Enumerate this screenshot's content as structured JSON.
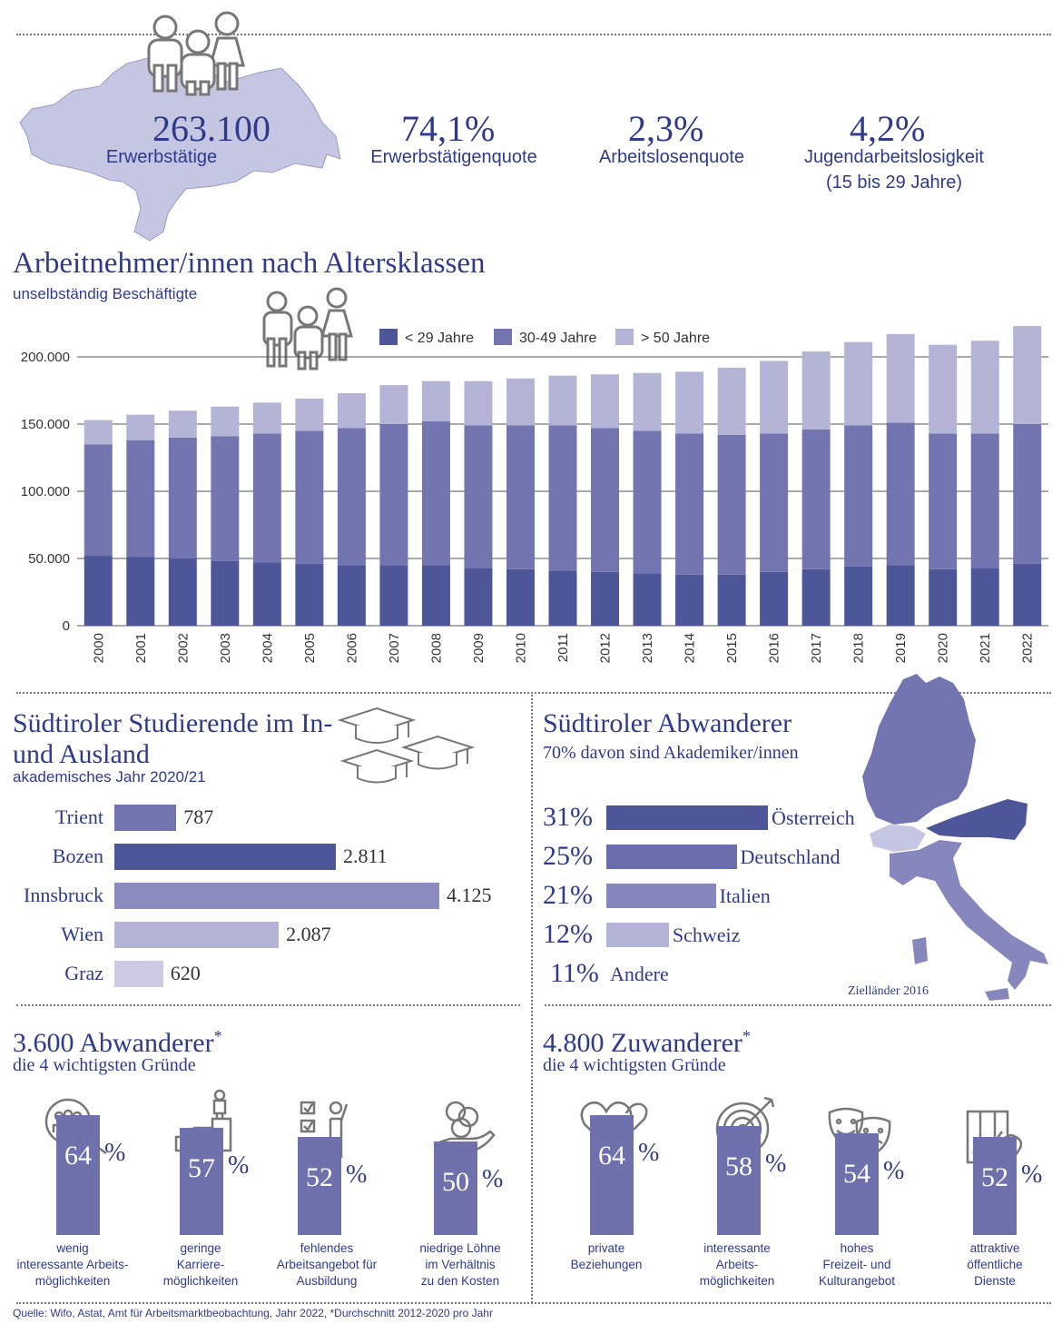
{
  "kpis": [
    {
      "value": "263.100",
      "label": "Erwerbstätige"
    },
    {
      "value": "74,1%",
      "label": "Erwerbstätigenquote"
    },
    {
      "value": "2,3%",
      "label": "Arbeitslosenquote"
    },
    {
      "value": "4,2%",
      "label": "Jugendarbeitslosigkeit",
      "label2": "(15 bis 29 Jahre)"
    }
  ],
  "colors": {
    "dark": "#4d5699",
    "mid": "#7275b0",
    "light": "#b3b4d6",
    "map_fill": "#c5c6e2"
  },
  "chart_data": [
    {
      "type": "bar",
      "stacked": true,
      "title": "Arbeitnehmer/innen nach Altersklassen",
      "subtitle": "unselbständig Beschäftigte",
      "categories": [
        "2000",
        "2001",
        "2002",
        "2003",
        "2004",
        "2005",
        "2006",
        "2007",
        "2008",
        "2009",
        "2010",
        "2011",
        "2012",
        "2013",
        "2014",
        "2015",
        "2016",
        "2017",
        "2018",
        "2019",
        "2020",
        "2021",
        "2022"
      ],
      "series": [
        {
          "name": "< 29 Jahre",
          "color": "#4d5699",
          "values": [
            52000,
            51000,
            50000,
            48000,
            47000,
            46000,
            45000,
            45000,
            45000,
            43000,
            42000,
            41000,
            40000,
            39000,
            38000,
            38000,
            40000,
            42000,
            44000,
            45000,
            42000,
            43000,
            46000
          ]
        },
        {
          "name": "30-49 Jahre",
          "color": "#7275b0",
          "values": [
            83000,
            87000,
            90000,
            93000,
            96000,
            99000,
            102000,
            105000,
            107000,
            106000,
            107000,
            108000,
            107000,
            106000,
            105000,
            104000,
            103000,
            104000,
            105000,
            106000,
            101000,
            100000,
            104000
          ]
        },
        {
          "name": "> 50 Jahre",
          "color": "#b3b4d6",
          "values": [
            18000,
            19000,
            20000,
            22000,
            23000,
            24000,
            26000,
            29000,
            30000,
            33000,
            35000,
            37000,
            40000,
            43000,
            46000,
            50000,
            54000,
            58000,
            62000,
            66000,
            66000,
            69000,
            73000
          ]
        }
      ],
      "yticks": [
        "0",
        "50.000",
        "100.000",
        "150.000",
        "200.000"
      ],
      "ylim": [
        0,
        230000
      ],
      "legend": "top"
    },
    {
      "type": "bar",
      "orientation": "horizontal",
      "title": "Südtiroler Studierende im In- und Ausland",
      "subtitle": "akademisches Jahr 2020/21",
      "categories": [
        "Trient",
        "Bozen",
        "Innsbruck",
        "Wien",
        "Graz"
      ],
      "values": [
        787,
        2811,
        4125,
        2087,
        620
      ],
      "value_labels": [
        "787",
        "2.811",
        "4.125",
        "2.087",
        "620"
      ],
      "colors": [
        "#7275b0",
        "#4d5699",
        "#8a8cc0",
        "#b3b4d6",
        "#cbcce4"
      ]
    },
    {
      "type": "bar",
      "orientation": "horizontal",
      "title": "Südtiroler Abwanderer",
      "subtitle": "70% davon sind Akademiker/innen",
      "categories": [
        "Österreich",
        "Deutschland",
        "Italien",
        "Schweiz",
        "Andere"
      ],
      "values": [
        31,
        25,
        21,
        12,
        11
      ],
      "value_labels": [
        "31%",
        "25%",
        "21%",
        "12%",
        "11%"
      ],
      "colors": [
        "#4d5699",
        "#6a6dab",
        "#8587bd",
        "#b3b4d6",
        "#ffffff"
      ],
      "map_caption": "Zielländer 2016"
    }
  ],
  "emigrants": {
    "title": "3.600 Abwanderer",
    "star": "*",
    "subtitle": "die 4 wichtigsten Gründe",
    "reasons": [
      {
        "value": "64",
        "label1": "wenig",
        "label2": "interessante Arbeits-",
        "label3": "möglichkeiten",
        "icon": "people-search-icon"
      },
      {
        "value": "57",
        "label1": "geringe",
        "label2": "Karriere-",
        "label3": "möglichkeiten",
        "icon": "career-steps-icon"
      },
      {
        "value": "52",
        "label1": "fehlendes",
        "label2": "Arbeitsangebot für",
        "label3": "Ausbildung",
        "icon": "checklist-person-icon"
      },
      {
        "value": "50",
        "label1": "niedrige Löhne",
        "label2": "im Verhältnis",
        "label3": "zu den Kosten",
        "icon": "coins-hand-icon"
      }
    ]
  },
  "immigrants": {
    "title": "4.800 Zuwanderer",
    "star": "*",
    "subtitle": "die 4 wichtigsten Gründe",
    "reasons": [
      {
        "value": "64",
        "label1": "private",
        "label2": "Beziehungen",
        "label3": "",
        "icon": "hearts-icon"
      },
      {
        "value": "58",
        "label1": "interessante",
        "label2": "Arbeits-",
        "label3": "möglichkeiten",
        "icon": "target-icon"
      },
      {
        "value": "54",
        "label1": "hohes",
        "label2": "Freizeit- und",
        "label3": "Kulturangebot",
        "icon": "theater-masks-icon"
      },
      {
        "value": "52",
        "label1": "attraktive",
        "label2": "öffentliche",
        "label3": "Dienste",
        "icon": "map-pin-icon"
      }
    ]
  },
  "unit": "%",
  "source": "Quelle: Wifo, Astat, Amt für Arbeitsmarktbeobachtung, Jahr 2022, *Durchschnitt 2012-2020 pro Jahr"
}
